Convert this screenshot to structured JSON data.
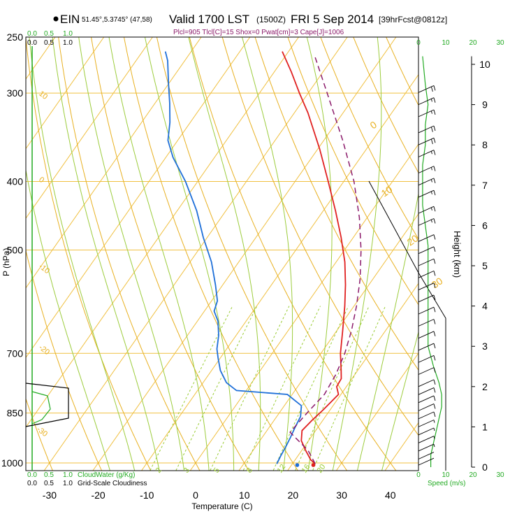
{
  "header": {
    "station": "EIN",
    "coords": "51.45°,5.3745° (47,58)",
    "valid": "Valid 1700 LST",
    "utc": "(1500Z)",
    "date": "FRI 5 Sep 2014",
    "forecast": "[39hrFcst@0812z]",
    "params": "Plcl=905 Tlcl[C]=15 Shox=0 Pwat[cm]=3 Cape[J]=1006"
  },
  "labels": {
    "cloudwater": "CloudWater (g/Kg)",
    "cloudiness": "Grid-Scale Cloudiness",
    "speed": "Speed (m/s)",
    "pressure": "P (hPa)",
    "height": "Height (km)",
    "temperature": "Temperature (C)"
  },
  "colors": {
    "isotherm": "#f0c040",
    "dry_adiabat": "#e8b020",
    "moist_adiabat": "#9ccc3c",
    "mixing_ratio": "#99cc33",
    "temperature": "#e02020",
    "dewpoint": "#1e6fd8",
    "parcel": "#8b1a6a",
    "green_axis": "#22aa22",
    "text": "#000000"
  },
  "chart_data": {
    "type": "line",
    "subtype": "skew-T log-P sounding",
    "x_axis": {
      "label": "Temperature (C)",
      "ticks": [
        -30,
        -20,
        -10,
        0,
        10,
        20,
        30,
        40
      ],
      "range": [
        -33,
        48
      ]
    },
    "y_axis": {
      "label": "P (hPa)",
      "scale": "log",
      "ticks": [
        250,
        300,
        400,
        500,
        700,
        850,
        1000
      ],
      "range": [
        1030,
        250
      ]
    },
    "height_axis": {
      "label": "Height (km)",
      "ticks": [
        0,
        1,
        2,
        3,
        4,
        5,
        6,
        7,
        8,
        9,
        10
      ]
    },
    "speed_axis": {
      "label": "Speed (m/s)",
      "ticks": [
        0,
        10,
        20,
        30
      ]
    },
    "cloudwater_axis": {
      "label": "CloudWater (g/Kg)",
      "ticks": [
        "0.0",
        "0.5",
        "1.0"
      ]
    },
    "cloudiness_axis": {
      "label": "Grid-Scale Cloudiness",
      "ticks": [
        "0.0",
        "0.5",
        "1.0"
      ]
    },
    "dry_adiabat_labels": [
      "10",
      "0",
      "-10",
      "-20",
      "-30"
    ],
    "moist_adiabat_labels": [
      "0",
      "10",
      "20",
      "30"
    ],
    "mixing_ratio_labels": [
      "2",
      "3",
      "5",
      "8",
      "12",
      "16",
      "20"
    ],
    "series": [
      {
        "name": "temperature",
        "points": [
          [
            1003,
            24.7
          ],
          [
            990,
            23.2
          ],
          [
            960,
            20.8
          ],
          [
            930,
            18.5
          ],
          [
            900,
            17.2
          ],
          [
            870,
            17.8
          ],
          [
            840,
            18.6
          ],
          [
            800,
            19.5
          ],
          [
            780,
            18.0
          ],
          [
            760,
            17.8
          ],
          [
            740,
            16.6
          ],
          [
            700,
            14.0
          ],
          [
            650,
            11.2
          ],
          [
            600,
            8.1
          ],
          [
            560,
            5.2
          ],
          [
            520,
            1.8
          ],
          [
            480,
            -2.5
          ],
          [
            440,
            -7.5
          ],
          [
            400,
            -13.2
          ],
          [
            360,
            -19.6
          ],
          [
            320,
            -27.2
          ],
          [
            300,
            -31.8
          ],
          [
            280,
            -36.5
          ],
          [
            262,
            -41.3
          ]
        ]
      },
      {
        "name": "dewpoint",
        "points": [
          [
            1003,
            16.8
          ],
          [
            980,
            16.5
          ],
          [
            950,
            16.2
          ],
          [
            920,
            15.8
          ],
          [
            890,
            15.3
          ],
          [
            860,
            14.9
          ],
          [
            830,
            13.5
          ],
          [
            800,
            9.0
          ],
          [
            790,
            -2.0
          ],
          [
            770,
            -5.2
          ],
          [
            740,
            -8.2
          ],
          [
            710,
            -10.5
          ],
          [
            690,
            -12.0
          ],
          [
            660,
            -13.6
          ],
          [
            630,
            -15.8
          ],
          [
            610,
            -18.0
          ],
          [
            590,
            -18.8
          ],
          [
            560,
            -21.5
          ],
          [
            520,
            -25.6
          ],
          [
            480,
            -30.8
          ],
          [
            440,
            -36.0
          ],
          [
            400,
            -42.5
          ],
          [
            370,
            -48.5
          ],
          [
            350,
            -52.0
          ],
          [
            330,
            -54.2
          ],
          [
            310,
            -57.0
          ],
          [
            290,
            -60.2
          ],
          [
            270,
            -63.5
          ],
          [
            262,
            -65.3
          ]
        ]
      },
      {
        "name": "parcel",
        "points": [
          [
            1003,
            24.7
          ],
          [
            960,
            21.3
          ],
          [
            905,
            15.0
          ],
          [
            850,
            15.7
          ],
          [
            800,
            16.6
          ],
          [
            750,
            16.1
          ],
          [
            700,
            14.9
          ],
          [
            650,
            13.0
          ],
          [
            600,
            10.5
          ],
          [
            550,
            7.4
          ],
          [
            500,
            3.4
          ],
          [
            450,
            -1.6
          ],
          [
            400,
            -7.9
          ],
          [
            350,
            -16.1
          ],
          [
            300,
            -26.1
          ],
          [
            265,
            -34.2
          ]
        ]
      }
    ],
    "surface_markers": [
      {
        "name": "dewpoint-surface",
        "t": 21.0
      },
      {
        "name": "temperature-surface",
        "t": 24.3
      }
    ],
    "wind_barbs": [
      {
        "h": 9.3,
        "spd": 20
      },
      {
        "h": 9.0,
        "spd": 18
      },
      {
        "h": 8.7,
        "spd": 18
      },
      {
        "h": 8.3,
        "spd": 20
      },
      {
        "h": 8.0,
        "spd": 20
      },
      {
        "h": 7.7,
        "spd": 18
      },
      {
        "h": 7.3,
        "spd": 18
      },
      {
        "h": 7.0,
        "spd": 18
      },
      {
        "h": 6.7,
        "spd": 15
      },
      {
        "h": 6.3,
        "spd": 15
      },
      {
        "h": 6.0,
        "spd": 15
      },
      {
        "h": 5.6,
        "spd": 13
      },
      {
        "h": 5.3,
        "spd": 12
      },
      {
        "h": 5.0,
        "spd": 12
      },
      {
        "h": 4.7,
        "spd": 10
      },
      {
        "h": 4.4,
        "spd": 10
      },
      {
        "h": 4.1,
        "spd": 10
      },
      {
        "h": 3.8,
        "spd": 10
      },
      {
        "h": 3.5,
        "spd": 10
      },
      {
        "h": 3.2,
        "spd": 10
      },
      {
        "h": 2.9,
        "spd": 10
      },
      {
        "h": 2.6,
        "spd": 10
      },
      {
        "h": 2.3,
        "spd": 12
      },
      {
        "h": 2.0,
        "spd": 12
      },
      {
        "h": 1.8,
        "spd": 13
      },
      {
        "h": 1.6,
        "spd": 12
      },
      {
        "h": 1.4,
        "spd": 10
      },
      {
        "h": 1.2,
        "spd": 10
      },
      {
        "h": 1.0,
        "spd": 8
      },
      {
        "h": 0.8,
        "spd": 7
      },
      {
        "h": 0.6,
        "spd": 5
      },
      {
        "h": 0.4,
        "spd": 5
      },
      {
        "h": 0.2,
        "spd": 3
      },
      {
        "h": 0.05,
        "spd": 3
      }
    ],
    "speed_profile": [
      [
        0,
        4
      ],
      [
        0.3,
        4
      ],
      [
        0.6,
        5
      ],
      [
        0.9,
        6
      ],
      [
        1.2,
        7
      ],
      [
        1.5,
        8
      ],
      [
        1.8,
        8
      ],
      [
        2.1,
        7
      ],
      [
        2.5,
        5
      ],
      [
        3.0,
        3
      ],
      [
        3.5,
        3
      ],
      [
        4.0,
        3
      ],
      [
        4.5,
        3
      ],
      [
        5.0,
        3
      ],
      [
        5.5,
        3
      ],
      [
        6.0,
        2
      ],
      [
        6.5,
        1
      ],
      [
        7.0,
        1
      ],
      [
        7.5,
        1
      ],
      [
        8.0,
        2
      ],
      [
        8.5,
        2
      ],
      [
        9.0,
        3
      ],
      [
        9.5,
        2
      ],
      [
        10.2,
        1
      ]
    ]
  }
}
